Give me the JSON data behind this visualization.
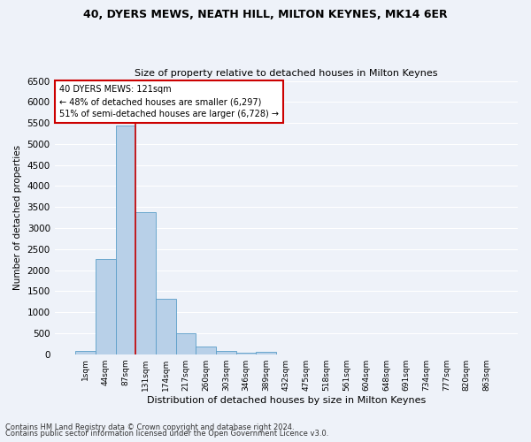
{
  "title1": "40, DYERS MEWS, NEATH HILL, MILTON KEYNES, MK14 6ER",
  "title2": "Size of property relative to detached houses in Milton Keynes",
  "xlabel": "Distribution of detached houses by size in Milton Keynes",
  "ylabel": "Number of detached properties",
  "footnote1": "Contains HM Land Registry data © Crown copyright and database right 2024.",
  "footnote2": "Contains public sector information licensed under the Open Government Licence v3.0.",
  "bar_labels": [
    "1sqm",
    "44sqm",
    "87sqm",
    "131sqm",
    "174sqm",
    "217sqm",
    "260sqm",
    "303sqm",
    "346sqm",
    "389sqm",
    "432sqm",
    "475sqm",
    "518sqm",
    "561sqm",
    "604sqm",
    "648sqm",
    "691sqm",
    "734sqm",
    "777sqm",
    "820sqm",
    "863sqm"
  ],
  "bar_values": [
    70,
    2270,
    5430,
    3380,
    1310,
    490,
    185,
    80,
    30,
    50,
    0,
    0,
    0,
    0,
    0,
    0,
    0,
    0,
    0,
    0,
    0
  ],
  "bar_color": "#b8d0e8",
  "bar_edge_color": "#5a9ec8",
  "background_color": "#eef2f9",
  "grid_color": "#ffffff",
  "vline_color": "#cc0000",
  "annotation_line1": "40 DYERS MEWS: 121sqm",
  "annotation_line2": "← 48% of detached houses are smaller (6,297)",
  "annotation_line3": "51% of semi-detached houses are larger (6,728) →",
  "annotation_box_color": "white",
  "annotation_box_edge": "#cc0000",
  "ylim_max": 6500,
  "ytick_step": 500
}
